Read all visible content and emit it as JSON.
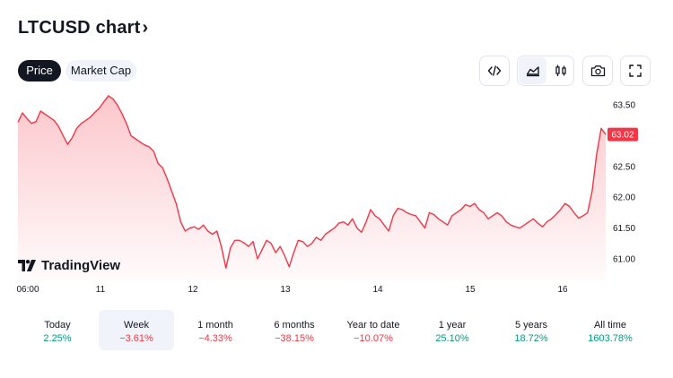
{
  "header": {
    "title": "LTCUSD chart",
    "chevron": "›"
  },
  "tabs": [
    {
      "label": "Price",
      "active": true
    },
    {
      "label": "Market Cap",
      "active": false
    }
  ],
  "toolbar": {
    "icons": [
      "code-embed-icon",
      "area-chart-icon",
      "candlestick-icon",
      "camera-icon",
      "fullscreen-icon"
    ],
    "active_chart_type": "area"
  },
  "chart_data": {
    "type": "area",
    "x_tick_labels": [
      "06:00",
      "11",
      "12",
      "13",
      "14",
      "15",
      "16"
    ],
    "y_tick_labels": [
      "63.50",
      "63.00",
      "62.50",
      "62.00",
      "61.50",
      "61.00"
    ],
    "y_ticks": [
      63.5,
      63.0,
      62.5,
      62.0,
      61.5,
      61.0
    ],
    "ylim": [
      60.65,
      63.75
    ],
    "current_price_label": "63.02",
    "current_price": 63.02,
    "line_color": "#f23645",
    "series": [
      {
        "values": [
          63.22,
          63.37,
          63.28,
          63.2,
          63.23,
          63.4,
          63.35,
          63.3,
          63.25,
          63.15,
          63.0,
          62.86,
          62.97,
          63.12,
          63.2,
          63.25,
          63.3,
          63.38,
          63.45,
          63.55,
          63.65,
          63.6,
          63.5,
          63.36,
          63.2,
          63.0,
          62.95,
          62.9,
          62.85,
          62.82,
          62.75,
          62.55,
          62.48,
          62.3,
          62.1,
          61.9,
          61.6,
          61.45,
          61.5,
          61.52,
          61.48,
          61.55,
          61.45,
          61.4,
          61.45,
          61.2,
          60.85,
          61.18,
          61.3,
          61.3,
          61.26,
          61.2,
          61.28,
          61.0,
          61.15,
          61.3,
          61.25,
          61.1,
          61.2,
          61.05,
          60.87,
          61.1,
          61.3,
          61.28,
          61.2,
          61.25,
          61.35,
          61.3,
          61.4,
          61.45,
          61.5,
          61.58,
          61.6,
          61.55,
          61.65,
          61.5,
          61.43,
          61.6,
          61.8,
          61.7,
          61.65,
          61.55,
          61.45,
          61.7,
          61.82,
          61.8,
          61.75,
          61.72,
          61.7,
          61.6,
          61.5,
          61.75,
          61.72,
          61.65,
          61.6,
          61.55,
          61.7,
          61.75,
          61.8,
          61.88,
          61.85,
          61.9,
          61.8,
          61.75,
          61.65,
          61.7,
          61.75,
          61.7,
          61.6,
          61.55,
          61.52,
          61.5,
          61.55,
          61.6,
          61.65,
          61.58,
          61.52,
          61.6,
          61.65,
          61.72,
          61.8,
          61.9,
          61.85,
          61.75,
          61.66,
          61.7,
          61.75,
          62.1,
          62.7,
          63.12,
          63.02
        ]
      }
    ]
  },
  "watermark": {
    "brand": "TradingView"
  },
  "ranges": [
    {
      "label": "Today",
      "change": "2.25%",
      "direction": "up",
      "selected": false
    },
    {
      "label": "Week",
      "change": "−3.61%",
      "direction": "down",
      "selected": true
    },
    {
      "label": "1 month",
      "change": "−4.33%",
      "direction": "down",
      "selected": false
    },
    {
      "label": "6 months",
      "change": "−38.15%",
      "direction": "down",
      "selected": false
    },
    {
      "label": "Year to date",
      "change": "−10.07%",
      "direction": "down",
      "selected": false
    },
    {
      "label": "1 year",
      "change": "25.10%",
      "direction": "up",
      "selected": false
    },
    {
      "label": "5 years",
      "change": "18.72%",
      "direction": "up",
      "selected": false
    },
    {
      "label": "All time",
      "change": "1603.78%",
      "direction": "up",
      "selected": false
    }
  ]
}
